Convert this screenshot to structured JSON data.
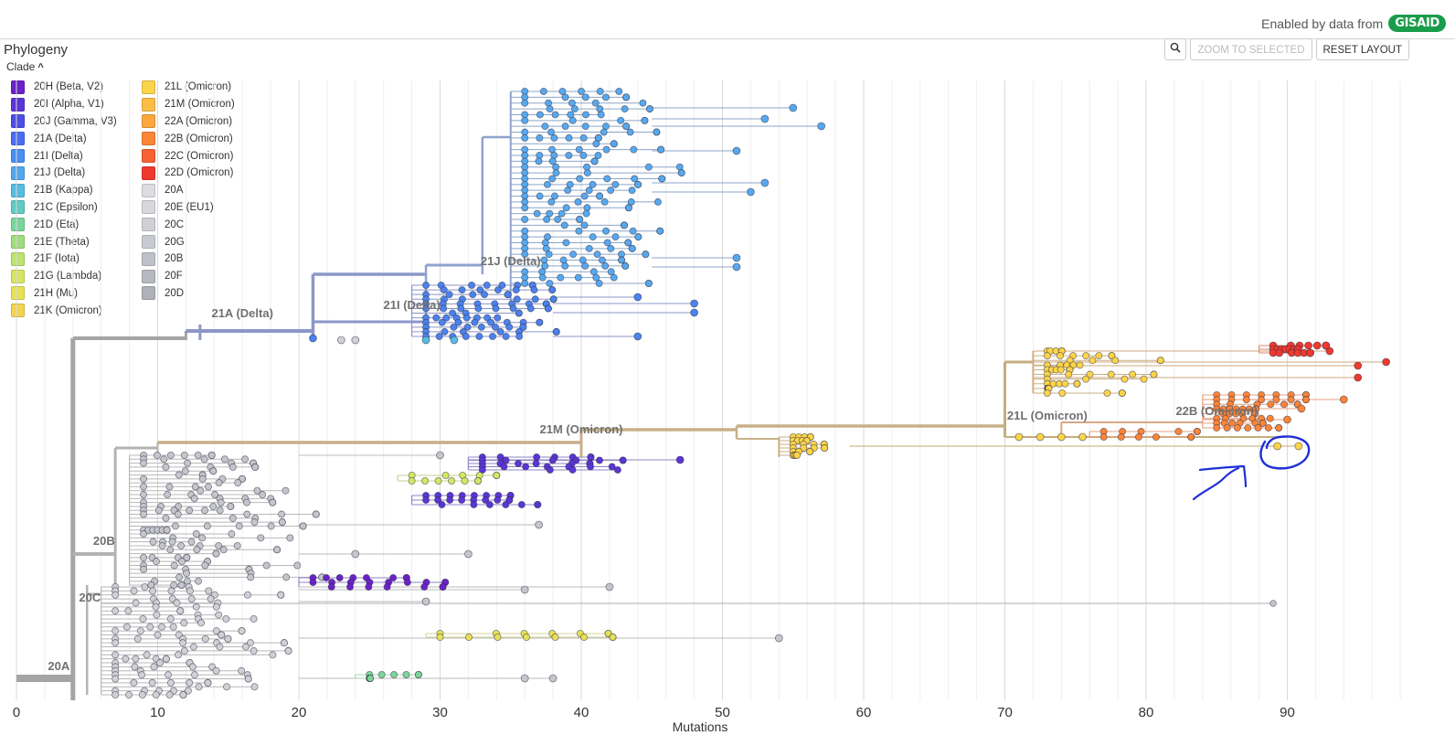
{
  "gisaid": {
    "enabled_text": "Enabled by data from",
    "logo_text": "GISAID"
  },
  "panel": {
    "title": "Phylogeny",
    "color_by_label": "Clade"
  },
  "toolbar": {
    "zoom_icon": "zoom-icon",
    "zoom_to_selected": "ZOOM TO SELECTED",
    "reset_layout": "RESET LAYOUT"
  },
  "legend": {
    "col1": [
      {
        "label": "20H (Beta, V2)",
        "color": "#6b22c8"
      },
      {
        "label": "20I (Alpha, V1)",
        "color": "#5b35d6"
      },
      {
        "label": "20J (Gamma, V3)",
        "color": "#4d4de6"
      },
      {
        "label": "21A (Delta)",
        "color": "#4a6df0"
      },
      {
        "label": "21I (Delta)",
        "color": "#4b8ef0"
      },
      {
        "label": "21J (Delta)",
        "color": "#54a6ec"
      },
      {
        "label": "21B (Kappa)",
        "color": "#56bde0"
      },
      {
        "label": "21C (Epsilon)",
        "color": "#60cbc2"
      },
      {
        "label": "21D (Eta)",
        "color": "#7bd59a"
      },
      {
        "label": "21E (Theta)",
        "color": "#9fdc7e"
      },
      {
        "label": "21F (Iota)",
        "color": "#bde370"
      },
      {
        "label": "21G (Lambda)",
        "color": "#d6e664"
      },
      {
        "label": "21H (Mu)",
        "color": "#e7e158"
      },
      {
        "label": "21K (Omicron)",
        "color": "#f4d350"
      }
    ],
    "col2": [
      {
        "label": "21L (Omicron)",
        "color": "#fbd44a"
      },
      {
        "label": "21M (Omicron)",
        "color": "#fbbd44"
      },
      {
        "label": "22A (Omicron)",
        "color": "#fca63e"
      },
      {
        "label": "22B (Omicron)",
        "color": "#fb8539"
      },
      {
        "label": "22C (Omicron)",
        "color": "#f76133"
      },
      {
        "label": "22D (Omicron)",
        "color": "#ee3a2e"
      },
      {
        "label": "20A",
        "color": "#dcdde0"
      },
      {
        "label": "20E (EU1)",
        "color": "#d6d8dc"
      },
      {
        "label": "20C",
        "color": "#cfd1d6"
      },
      {
        "label": "20G",
        "color": "#c7cad0"
      },
      {
        "label": "20B",
        "color": "#bfc1c8"
      },
      {
        "label": "20F",
        "color": "#b7b9c0"
      },
      {
        "label": "20D",
        "color": "#afb1b8"
      }
    ]
  },
  "tree": {
    "x_axis_label": "Mutations",
    "x_ticks": [
      "0",
      "10",
      "20",
      "30",
      "40",
      "50",
      "60",
      "70",
      "80",
      "90"
    ],
    "x_tick_values": [
      0,
      10,
      20,
      30,
      40,
      50,
      60,
      70,
      80,
      90
    ],
    "clade_labels": [
      "21J (Delta)",
      "21I (Delta)",
      "21A (Delta)",
      "21M (Omicron)",
      "21L (Omicron)",
      "22B (Omicron)",
      "20B",
      "20C",
      "20A"
    ]
  }
}
